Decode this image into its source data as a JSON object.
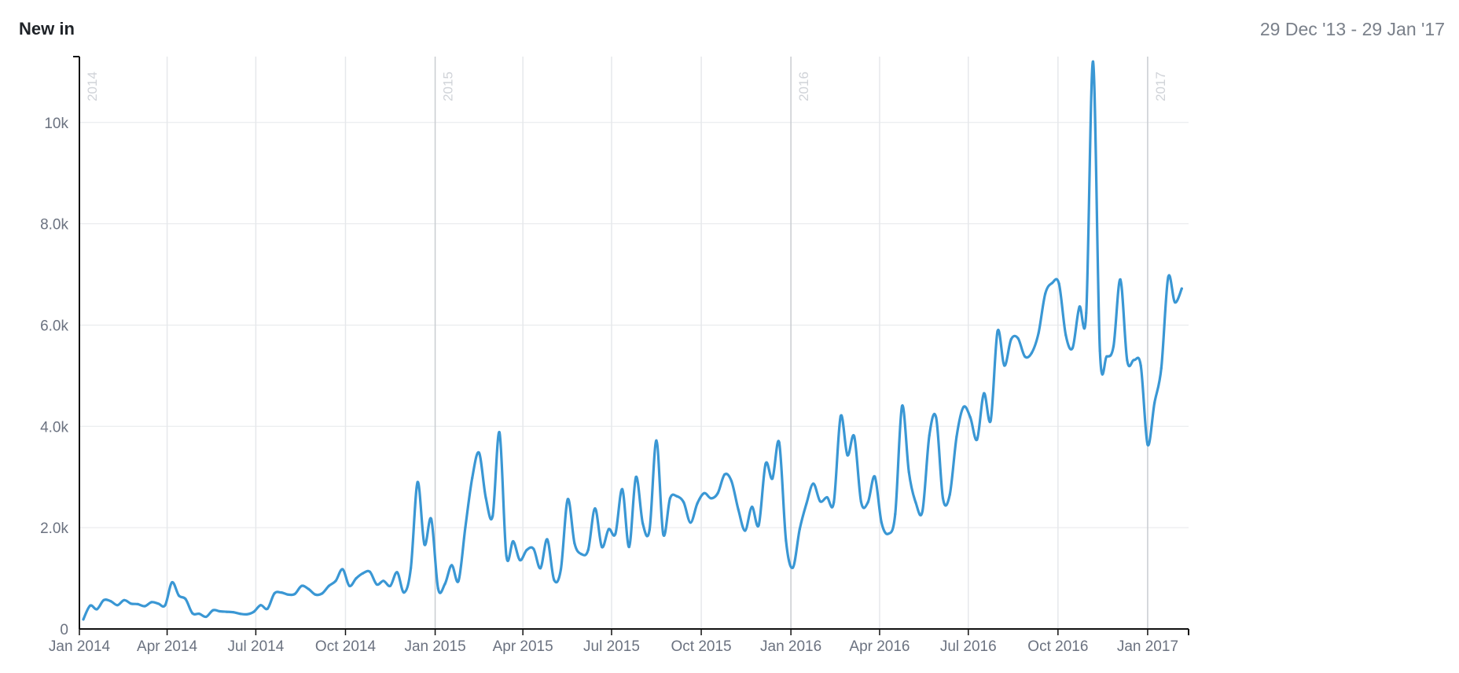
{
  "header": {
    "title": "New in",
    "date_range": "29 Dec '13 - 29 Jan '17"
  },
  "chart_data": {
    "type": "line",
    "title": "New in",
    "subtitle": "29 Dec '13 - 29 Jan '17",
    "xlabel": "",
    "ylabel": "",
    "grid": true,
    "ylim": [
      0,
      11300
    ],
    "xlim": [
      "2014-01-01",
      "2017-02-12"
    ],
    "yticks": [
      {
        "value": 0,
        "label": "0"
      },
      {
        "value": 2000,
        "label": "2.0k"
      },
      {
        "value": 4000,
        "label": "4.0k"
      },
      {
        "value": 6000,
        "label": "6.0k"
      },
      {
        "value": 8000,
        "label": "8.0k"
      },
      {
        "value": 10000,
        "label": "10k"
      }
    ],
    "xticks": [
      {
        "date": "2014-01-01",
        "label": "Jan 2014"
      },
      {
        "date": "2014-04-01",
        "label": "Apr 2014"
      },
      {
        "date": "2014-07-01",
        "label": "Jul 2014"
      },
      {
        "date": "2014-10-01",
        "label": "Oct 2014"
      },
      {
        "date": "2015-01-01",
        "label": "Jan 2015"
      },
      {
        "date": "2015-04-01",
        "label": "Apr 2015"
      },
      {
        "date": "2015-07-01",
        "label": "Jul 2015"
      },
      {
        "date": "2015-10-01",
        "label": "Oct 2015"
      },
      {
        "date": "2016-01-01",
        "label": "Jan 2016"
      },
      {
        "date": "2016-04-01",
        "label": "Apr 2016"
      },
      {
        "date": "2016-07-01",
        "label": "Jul 2016"
      },
      {
        "date": "2016-10-01",
        "label": "Oct 2016"
      },
      {
        "date": "2017-01-01",
        "label": "Jan 2017"
      }
    ],
    "year_markers": [
      {
        "date": "2014-01-01",
        "label": "2014"
      },
      {
        "date": "2015-01-01",
        "label": "2015"
      },
      {
        "date": "2016-01-01",
        "label": "2016"
      },
      {
        "date": "2017-01-01",
        "label": "2017"
      }
    ],
    "colors": {
      "line": "#3a97d4",
      "grid": "#e6e8eb",
      "year_line": "#c9ccd1",
      "axis": "#111111"
    },
    "series": [
      {
        "x": [
          "2014-01-05",
          "2014-01-12",
          "2014-01-19",
          "2014-01-26",
          "2014-02-02",
          "2014-02-09",
          "2014-02-16",
          "2014-02-23",
          "2014-03-02",
          "2014-03-09",
          "2014-03-16",
          "2014-03-23",
          "2014-03-30",
          "2014-04-06",
          "2014-04-13",
          "2014-04-20",
          "2014-04-27",
          "2014-05-04",
          "2014-05-11",
          "2014-05-18",
          "2014-05-25",
          "2014-06-01",
          "2014-06-08",
          "2014-06-15",
          "2014-06-22",
          "2014-06-29",
          "2014-07-06",
          "2014-07-13",
          "2014-07-20",
          "2014-07-27",
          "2014-08-03",
          "2014-08-10",
          "2014-08-17",
          "2014-08-24",
          "2014-08-31",
          "2014-09-07",
          "2014-09-14",
          "2014-09-21",
          "2014-09-28",
          "2014-10-05",
          "2014-10-12",
          "2014-10-19",
          "2014-10-26",
          "2014-11-02",
          "2014-11-09",
          "2014-11-16",
          "2014-11-23",
          "2014-11-30",
          "2014-12-07",
          "2014-12-14",
          "2014-12-21",
          "2014-12-28",
          "2015-01-04",
          "2015-01-11",
          "2015-01-18",
          "2015-01-25",
          "2015-02-01",
          "2015-02-08",
          "2015-02-15",
          "2015-02-22",
          "2015-03-01",
          "2015-03-08",
          "2015-03-15",
          "2015-03-22",
          "2015-03-29",
          "2015-04-05",
          "2015-04-12",
          "2015-04-19",
          "2015-04-26",
          "2015-05-03",
          "2015-05-10",
          "2015-05-17",
          "2015-05-24",
          "2015-05-31",
          "2015-06-07",
          "2015-06-14",
          "2015-06-21",
          "2015-06-28",
          "2015-07-05",
          "2015-07-12",
          "2015-07-19",
          "2015-07-26",
          "2015-08-02",
          "2015-08-09",
          "2015-08-16",
          "2015-08-23",
          "2015-08-30",
          "2015-09-06",
          "2015-09-13",
          "2015-09-20",
          "2015-09-27",
          "2015-10-04",
          "2015-10-11",
          "2015-10-18",
          "2015-10-25",
          "2015-11-01",
          "2015-11-08",
          "2015-11-15",
          "2015-11-22",
          "2015-11-29",
          "2015-12-06",
          "2015-12-13",
          "2015-12-20",
          "2015-12-27",
          "2016-01-03",
          "2016-01-10",
          "2016-01-17",
          "2016-01-24",
          "2016-01-31",
          "2016-02-07",
          "2016-02-14",
          "2016-02-21",
          "2016-02-28",
          "2016-03-06",
          "2016-03-13",
          "2016-03-20",
          "2016-03-27",
          "2016-04-03",
          "2016-04-10",
          "2016-04-17",
          "2016-04-24",
          "2016-05-01",
          "2016-05-08",
          "2016-05-15",
          "2016-05-22",
          "2016-05-29",
          "2016-06-05",
          "2016-06-12",
          "2016-06-19",
          "2016-06-26",
          "2016-07-03",
          "2016-07-10",
          "2016-07-17",
          "2016-07-24",
          "2016-07-31",
          "2016-08-07",
          "2016-08-14",
          "2016-08-21",
          "2016-08-28",
          "2016-09-04",
          "2016-09-11",
          "2016-09-18",
          "2016-09-25",
          "2016-10-02",
          "2016-10-09",
          "2016-10-16",
          "2016-10-23",
          "2016-10-30",
          "2016-11-06",
          "2016-11-13",
          "2016-11-20",
          "2016-11-27",
          "2016-12-04",
          "2016-12-11",
          "2016-12-18",
          "2016-12-25",
          "2017-01-01",
          "2017-01-08",
          "2017-01-15",
          "2017-01-22",
          "2017-01-29",
          "2017-02-05"
        ],
        "values": [
          190,
          460,
          390,
          570,
          550,
          470,
          570,
          500,
          490,
          450,
          530,
          500,
          470,
          920,
          660,
          590,
          310,
          300,
          240,
          370,
          350,
          340,
          330,
          300,
          290,
          340,
          470,
          400,
          700,
          720,
          680,
          690,
          850,
          790,
          680,
          700,
          850,
          950,
          1180,
          850,
          1000,
          1100,
          1130,
          880,
          950,
          850,
          1120,
          720,
          1200,
          2900,
          1670,
          2170,
          800,
          890,
          1260,
          950,
          2010,
          2980,
          3480,
          2590,
          2230,
          3880,
          1450,
          1730,
          1360,
          1560,
          1580,
          1200,
          1770,
          970,
          1180,
          2560,
          1690,
          1480,
          1560,
          2380,
          1620,
          1970,
          1880,
          2760,
          1620,
          3000,
          2080,
          1960,
          3720,
          1870,
          2580,
          2620,
          2500,
          2100,
          2480,
          2680,
          2580,
          2680,
          3050,
          2920,
          2360,
          1940,
          2410,
          2050,
          3260,
          2970,
          3680,
          1740,
          1210,
          1970,
          2480,
          2870,
          2520,
          2600,
          2500,
          4200,
          3430,
          3800,
          2510,
          2500,
          3010,
          2100,
          1880,
          2270,
          4400,
          3100,
          2500,
          2330,
          3820,
          4170,
          2580,
          2650,
          3800,
          4380,
          4180,
          3740,
          4650,
          4120,
          5880,
          5200,
          5720,
          5740,
          5380,
          5450,
          5840,
          6620,
          6830,
          6820,
          5800,
          5550,
          6360,
          6240,
          11200,
          5490,
          5380,
          5580,
          6900,
          5300,
          5310,
          5200,
          3640,
          4460,
          5150,
          6940,
          6450,
          6720
        ]
      }
    ]
  }
}
